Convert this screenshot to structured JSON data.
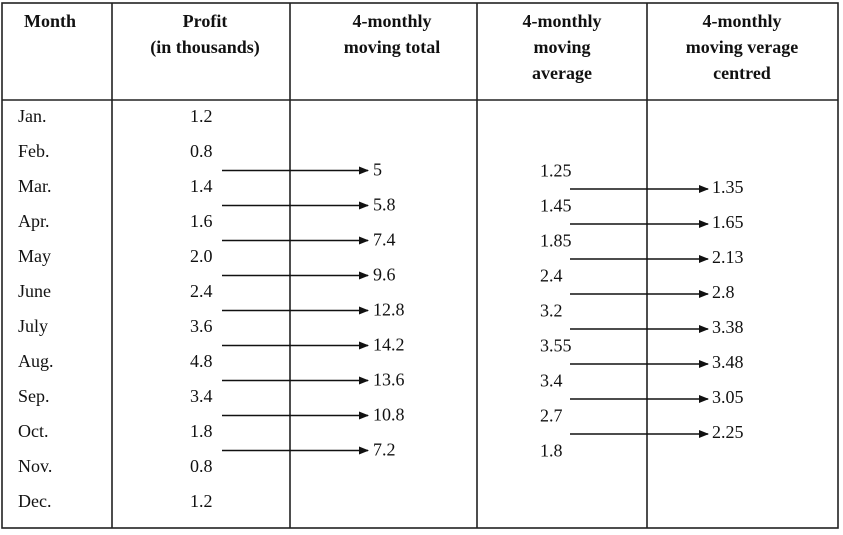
{
  "table": {
    "headers": [
      [
        "Month"
      ],
      [
        "Profit",
        "(in thousands)"
      ],
      [
        "4-monthly",
        "moving total"
      ],
      [
        "4-monthly",
        "moving",
        "average"
      ],
      [
        "4-monthly",
        "moving verage",
        "centred"
      ]
    ],
    "months": [
      "Jan.",
      "Feb.",
      "Mar.",
      "Apr.",
      "May",
      "June",
      "July",
      "Aug.",
      "Sep.",
      "Oct.",
      "Nov.",
      "Dec."
    ],
    "profit": [
      "1.2",
      "0.8",
      "1.4",
      "1.6",
      "2.0",
      "2.4",
      "3.6",
      "4.8",
      "3.4",
      "1.8",
      "0.8",
      "1.2"
    ],
    "moving_total": [
      "5",
      "5.8",
      "7.4",
      "9.6",
      "12.8",
      "14.2",
      "13.6",
      "10.8",
      "7.2"
    ],
    "moving_average": [
      "1.25",
      "1.45",
      "1.85",
      "2.4",
      "3.2",
      "3.55",
      "3.4",
      "2.7",
      "1.8"
    ],
    "centred": [
      "1.35",
      "1.65",
      "2.13",
      "2.8",
      "3.38",
      "3.48",
      "3.05",
      "2.25"
    ]
  }
}
